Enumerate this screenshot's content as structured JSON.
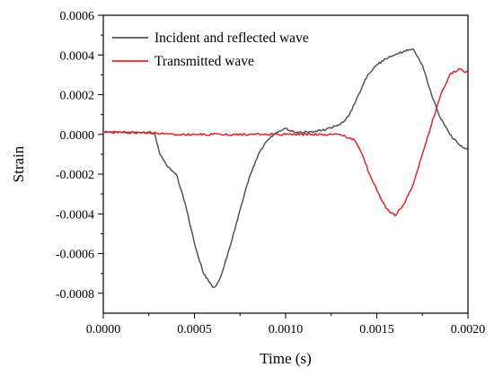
{
  "chart_data": {
    "type": "line",
    "xlabel": "Time (s)",
    "ylabel": "Strain",
    "xlim": [
      0,
      0.002
    ],
    "ylim": [
      -0.0009,
      0.0006
    ],
    "x_ticks": [
      0,
      0.0005,
      0.001,
      0.0015,
      0.002
    ],
    "x_tick_labels": [
      "0.0000",
      "0.0005",
      "0.0010",
      "0.0015",
      "0.0020"
    ],
    "y_ticks": [
      -0.0008,
      -0.0006,
      -0.0004,
      -0.0002,
      0,
      0.0002,
      0.0004,
      0.0006
    ],
    "y_tick_labels": [
      "-0.0008",
      "-0.0006",
      "-0.0004",
      "-0.0002",
      "0.0000",
      "0.0002",
      "0.0004",
      "0.0006"
    ],
    "grid": false,
    "legend_position": "top-left",
    "series": [
      {
        "name": "Incident and reflected wave",
        "color": "#555555",
        "x": [
          0,
          0.0001,
          0.0002,
          0.00028,
          0.00031,
          0.00035,
          0.0004,
          0.00045,
          0.0005,
          0.00055,
          0.0006,
          0.00062,
          0.00065,
          0.0007,
          0.00075,
          0.0008,
          0.00085,
          0.0009,
          0.00095,
          0.001,
          0.00105,
          0.0011,
          0.0012,
          0.0013,
          0.00135,
          0.0014,
          0.00145,
          0.0015,
          0.00155,
          0.0016,
          0.00165,
          0.0017,
          0.00175,
          0.0018,
          0.00185,
          0.0019,
          0.00195,
          0.002
        ],
        "y": [
          1e-05,
          1e-05,
          1e-05,
          1e-05,
          -0.0001,
          -0.00016,
          -0.0002,
          -0.00035,
          -0.00055,
          -0.0007,
          -0.00077,
          -0.00076,
          -0.0007,
          -0.00055,
          -0.00038,
          -0.00022,
          -0.0001,
          -3e-05,
          1e-05,
          3e-05,
          1e-05,
          1e-05,
          2e-05,
          5e-05,
          0.0001,
          0.0002,
          0.0003,
          0.00035,
          0.00038,
          0.0004,
          0.00042,
          0.00043,
          0.00035,
          0.0002,
          8e-05,
          0.0,
          -5e-05,
          -8e-05
        ]
      },
      {
        "name": "Transmitted wave",
        "color": "#e8262b",
        "x": [
          0,
          0.0002,
          0.0004,
          0.0006,
          0.0008,
          0.001,
          0.0012,
          0.0013,
          0.00138,
          0.00142,
          0.00146,
          0.0015,
          0.00155,
          0.0016,
          0.00165,
          0.0017,
          0.00175,
          0.0018,
          0.00185,
          0.0019,
          0.00195,
          0.002
        ],
        "y": [
          1e-05,
          1e-05,
          0.0,
          0.0,
          0.0,
          0.0,
          0.0,
          0.0,
          -3e-05,
          -0.0001,
          -0.0002,
          -0.00028,
          -0.00037,
          -0.00041,
          -0.00035,
          -0.00025,
          -0.0001,
          5e-05,
          0.0002,
          0.0003,
          0.00033,
          0.00031
        ]
      }
    ]
  }
}
